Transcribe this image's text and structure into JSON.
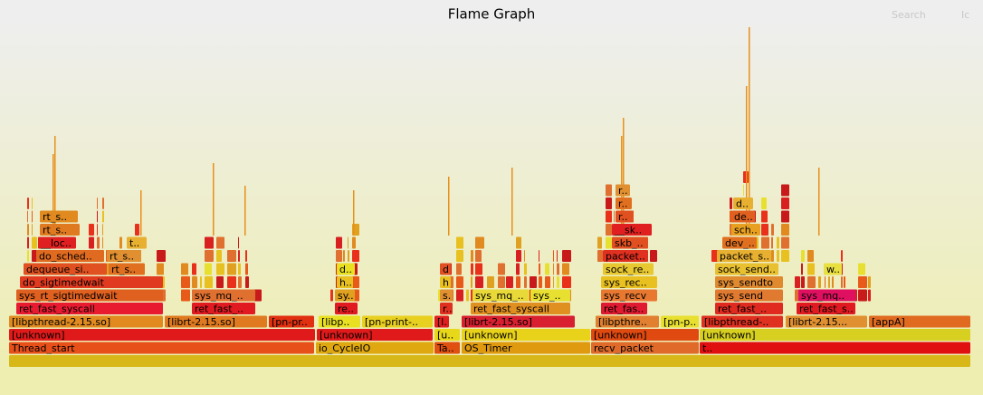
{
  "header": {
    "title": "Flame Graph",
    "search": "Search",
    "ic": "Ic"
  },
  "frames": [
    {
      "label": "Thread_start"
    },
    {
      "label": "io_CycleIO"
    },
    {
      "label": "Ta.."
    },
    {
      "label": "OS_Timer"
    },
    {
      "label": "recv_packet"
    },
    {
      "label": "t.."
    },
    {
      "label": "[unknown]"
    },
    {
      "label": "[unknown]"
    },
    {
      "label": "[u.."
    },
    {
      "label": "[unknown]"
    },
    {
      "label": "[unknown]"
    },
    {
      "label": "[unknown]"
    },
    {
      "label": "[libpthread-2.15.so]"
    },
    {
      "label": "[librt-2.15.so]"
    },
    {
      "label": "[pn-pr.."
    },
    {
      "label": "[libp.."
    },
    {
      "label": "[pn-print-.."
    },
    {
      "label": "[l.."
    },
    {
      "label": "[librt-2.15.so]"
    },
    {
      "label": "[libpthre.."
    },
    {
      "label": "[pn-p.."
    },
    {
      "label": "[libpthread-.."
    },
    {
      "label": "[librt-2.15..."
    },
    {
      "label": "[appA]"
    },
    {
      "label": "ret_fast_syscall"
    },
    {
      "label": "ret_fast_.."
    },
    {
      "label": "re.."
    },
    {
      "label": "r.."
    },
    {
      "label": "ret_fast_syscall"
    },
    {
      "label": "ret_fas.."
    },
    {
      "label": "ret_fast_.."
    },
    {
      "label": "ret_fast_s.."
    },
    {
      "label": "sys_rt_sigtimedwait"
    },
    {
      "label": "sys_mq_.."
    },
    {
      "label": "sy.."
    },
    {
      "label": "s.."
    },
    {
      "label": "sys_mq_.."
    },
    {
      "label": "sys_.."
    },
    {
      "label": "sys_recv"
    },
    {
      "label": "sys_send"
    },
    {
      "label": "sys_mq.."
    },
    {
      "label": "do_sigtimedwait"
    },
    {
      "label": "h.."
    },
    {
      "label": "h.."
    },
    {
      "label": "sys_rec.."
    },
    {
      "label": "sys_sendto"
    },
    {
      "label": "dequeue_si.."
    },
    {
      "label": "rt_s.."
    },
    {
      "label": "d.."
    },
    {
      "label": "d.."
    },
    {
      "label": "sock_re.."
    },
    {
      "label": "sock_send.."
    },
    {
      "label": "w.."
    },
    {
      "label": "do_sched.."
    },
    {
      "label": "rt_s.."
    },
    {
      "label": "packet.."
    },
    {
      "label": "packet_s.."
    },
    {
      "label": "__loc.."
    },
    {
      "label": "t.."
    },
    {
      "label": "skb_.."
    },
    {
      "label": "dev_.."
    },
    {
      "label": "rt_s.."
    },
    {
      "label": "__sk.."
    },
    {
      "label": "sch.."
    },
    {
      "label": "rt_s.."
    },
    {
      "label": "r.."
    },
    {
      "label": "de.."
    },
    {
      "label": "r.."
    },
    {
      "label": "d.."
    },
    {
      "label": "r.."
    }
  ]
}
